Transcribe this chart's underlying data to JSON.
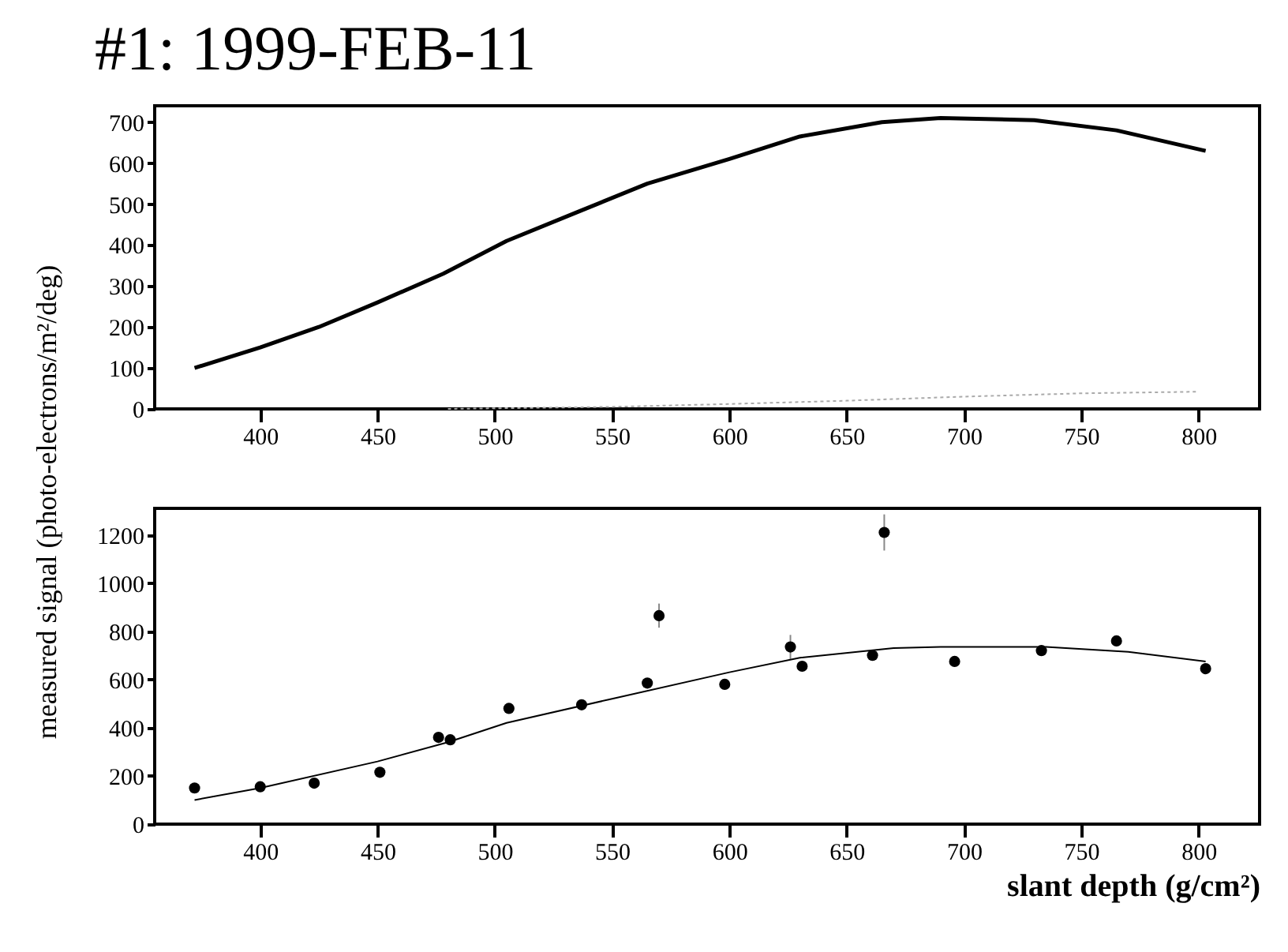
{
  "chart_data": [
    {
      "type": "line",
      "title": "#1: 1999-FEB-11",
      "ylabel": "measured signal (photo-electrons/m²/deg)",
      "xlim": [
        355,
        826
      ],
      "xticks": [
        400,
        450,
        500,
        550,
        600,
        650,
        700,
        750,
        800
      ],
      "ylim": [
        0,
        740
      ],
      "yticks": [
        0,
        100,
        200,
        300,
        400,
        500,
        600,
        700
      ],
      "grid": false,
      "series": [
        {
          "color": "#000000",
          "line_style": "solid",
          "x": [
            372,
            400,
            425,
            450,
            478,
            505,
            535,
            565,
            600,
            630,
            665,
            690,
            730,
            765,
            803
          ],
          "values": [
            100,
            150,
            200,
            260,
            330,
            410,
            480,
            550,
            610,
            665,
            700,
            710,
            705,
            680,
            630
          ]
        },
        {
          "color": "#aaaaaa",
          "line_style": "dotted",
          "x": [
            480,
            550,
            600,
            650,
            700,
            750,
            800
          ],
          "values": [
            0,
            5,
            12,
            20,
            30,
            38,
            42
          ]
        }
      ]
    },
    {
      "type": "scatter",
      "xlabel": "slant depth (g/cm²)",
      "xlim": [
        355,
        826
      ],
      "xticks": [
        400,
        450,
        500,
        550,
        600,
        650,
        700,
        750,
        800
      ],
      "ylim": [
        0,
        1310
      ],
      "yticks": [
        0,
        200,
        400,
        600,
        800,
        1000,
        1200
      ],
      "grid": false,
      "series": [
        {
          "marker": "circle",
          "color": "#000000",
          "x": [
            372,
            400,
            423,
            451,
            476,
            481,
            506,
            537,
            565,
            570,
            598,
            626,
            631,
            661,
            666,
            696,
            733,
            765,
            803
          ],
          "values": [
            150,
            155,
            170,
            215,
            360,
            350,
            480,
            495,
            585,
            865,
            580,
            735,
            655,
            700,
            1210,
            675,
            720,
            760,
            645
          ],
          "errors": [
            null,
            null,
            null,
            null,
            null,
            null,
            null,
            null,
            null,
            50,
            null,
            50,
            null,
            null,
            75,
            null,
            null,
            null,
            null
          ]
        },
        {
          "type": "line",
          "line_style": "solid",
          "color": "#000000",
          "x": [
            372,
            400,
            450,
            480,
            505,
            550,
            600,
            630,
            670,
            690,
            735,
            770,
            803
          ],
          "values": [
            100,
            150,
            260,
            340,
            420,
            520,
            630,
            690,
            730,
            735,
            735,
            715,
            675
          ]
        }
      ]
    }
  ]
}
